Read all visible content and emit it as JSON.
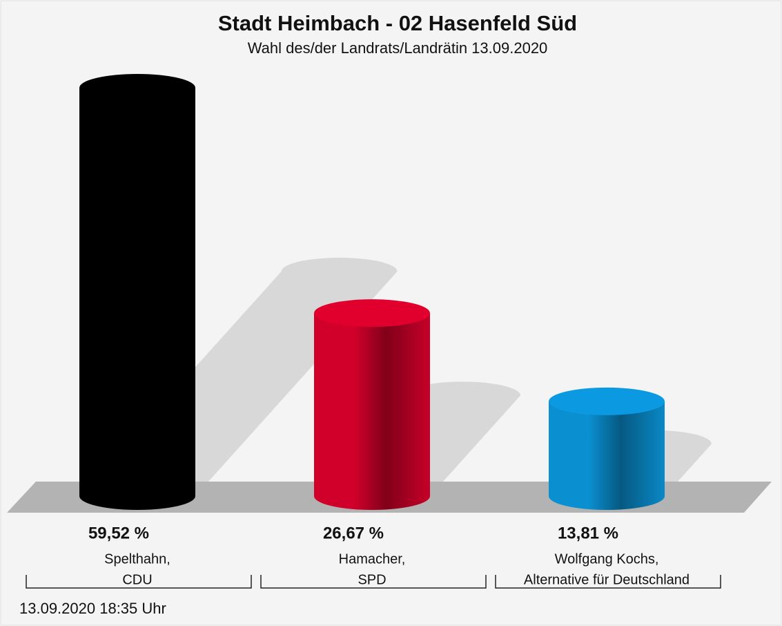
{
  "chart_data": {
    "type": "cylinder",
    "title": "Stadt Heimbach - 02 Hasenfeld Süd",
    "subtitle": "Wahl des/der Landrats/Landrätin 13.09.2020",
    "categories": [
      [
        "Spelthahn,",
        "CDU"
      ],
      [
        "Hamacher,",
        "SPD"
      ],
      [
        "Wolfgang Kochs,",
        "Alternative für Deutschland"
      ]
    ],
    "values": [
      59.52,
      26.67,
      13.81
    ],
    "value_labels": [
      "59,52 %",
      "26,67 %",
      "13,81 %"
    ],
    "colors": [
      "#000000",
      "#d0002a",
      "#0a8fd0"
    ],
    "footnote": "13.09.2020 18:35 Uhr"
  }
}
